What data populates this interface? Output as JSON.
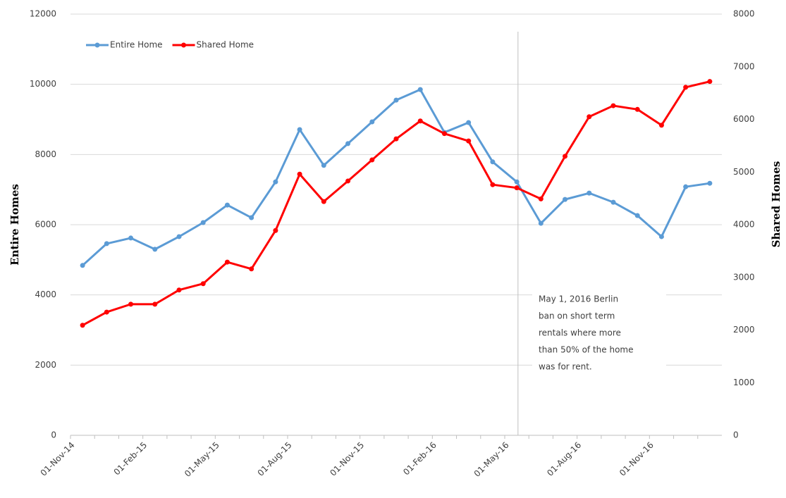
{
  "chart_data": {
    "type": "line",
    "categories": [
      "01-Nov-14",
      null,
      null,
      "01-Feb-15",
      null,
      null,
      "01-May-15",
      null,
      null,
      "01-Aug-15",
      null,
      null,
      "01-Nov-15",
      null,
      null,
      "01-Feb-16",
      null,
      null,
      "01-May-16",
      null,
      null,
      "01-Aug-16",
      null,
      null,
      "01-Nov-16",
      null,
      null
    ],
    "series": [
      {
        "name": "Entire Home",
        "color": "#5b9bd5",
        "values": [
          4840,
          5460,
          5620,
          5300,
          5660,
          6060,
          6560,
          6200,
          7220,
          8710,
          7690,
          8310,
          8930,
          9550,
          9850,
          8630,
          8910,
          7790,
          7220,
          6040,
          6720,
          6900,
          6640,
          6260,
          5660,
          7080,
          7180
        ]
      },
      {
        "name": "Shared Home",
        "color": "#ff0000",
        "axis": "y2",
        "values": [
          2090,
          2340,
          2490,
          2490,
          2760,
          2880,
          3290,
          3160,
          3890,
          4960,
          4440,
          4830,
          5230,
          5630,
          5970,
          5730,
          5590,
          4760,
          4700,
          4490,
          5300,
          6050,
          6260,
          6190,
          5890,
          6610,
          6720
        ]
      }
    ],
    "ylabel": "Entire Homes",
    "y2label": "Shared Homes",
    "ylim": [
      0,
      12000
    ],
    "yticks": [
      0,
      2000,
      4000,
      6000,
      8000,
      10000,
      12000
    ],
    "y2lim": [
      0,
      8000
    ],
    "y2ticks": [
      0,
      1000,
      2000,
      3000,
      4000,
      5000,
      6000,
      7000,
      8000
    ],
    "grid": true,
    "legend": "top-left",
    "annotation": [
      "May 1, 2016 Berlin",
      "ban on short term",
      "rentals where more",
      "than 50% of the home",
      "was for rent."
    ]
  }
}
